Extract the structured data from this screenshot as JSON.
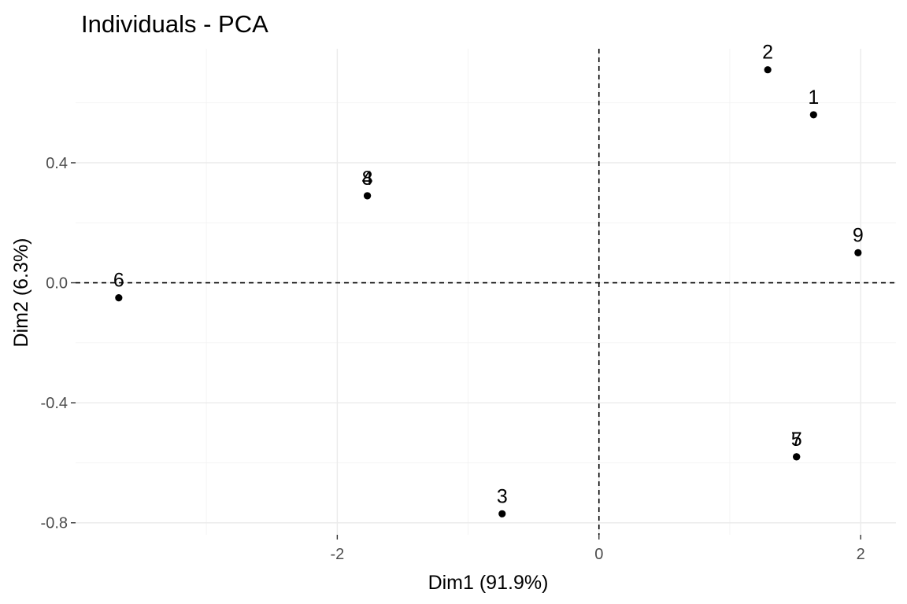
{
  "chart_data": {
    "type": "scatter",
    "title": "Individuals - PCA",
    "xlabel": "Dim1 (91.9%)",
    "ylabel": "Dim2 (6.3%)",
    "xlim": [
      -4.0,
      2.27
    ],
    "ylim": [
      -0.84,
      0.78
    ],
    "x_ticks": [
      -2,
      0,
      2
    ],
    "x_tick_labels": [
      "-2",
      "0",
      "2"
    ],
    "y_ticks": [
      -0.8,
      -0.4,
      0.0,
      0.4
    ],
    "y_tick_labels": [
      "-0.8",
      "-0.4",
      "0.0",
      "0.4"
    ],
    "x_minor_ticks": [
      -3,
      -1,
      1
    ],
    "y_minor_ticks": [
      -0.6,
      -0.2,
      0.2,
      0.6
    ],
    "reference_lines": {
      "x": 0,
      "y": 0
    },
    "grid": true,
    "points": [
      {
        "label": "1",
        "x": 1.64,
        "y": 0.56
      },
      {
        "label": "2",
        "x": 1.29,
        "y": 0.71
      },
      {
        "label": "3",
        "x": -0.74,
        "y": -0.77
      },
      {
        "label": "4",
        "x": -1.77,
        "y": 0.29
      },
      {
        "label": "5",
        "x": 1.51,
        "y": -0.58
      },
      {
        "label": "6",
        "x": -3.67,
        "y": -0.05
      },
      {
        "label": "7",
        "x": 1.51,
        "y": -0.58
      },
      {
        "label": "8",
        "x": -1.77,
        "y": 0.29
      },
      {
        "label": "9",
        "x": 1.98,
        "y": 0.1
      }
    ]
  }
}
